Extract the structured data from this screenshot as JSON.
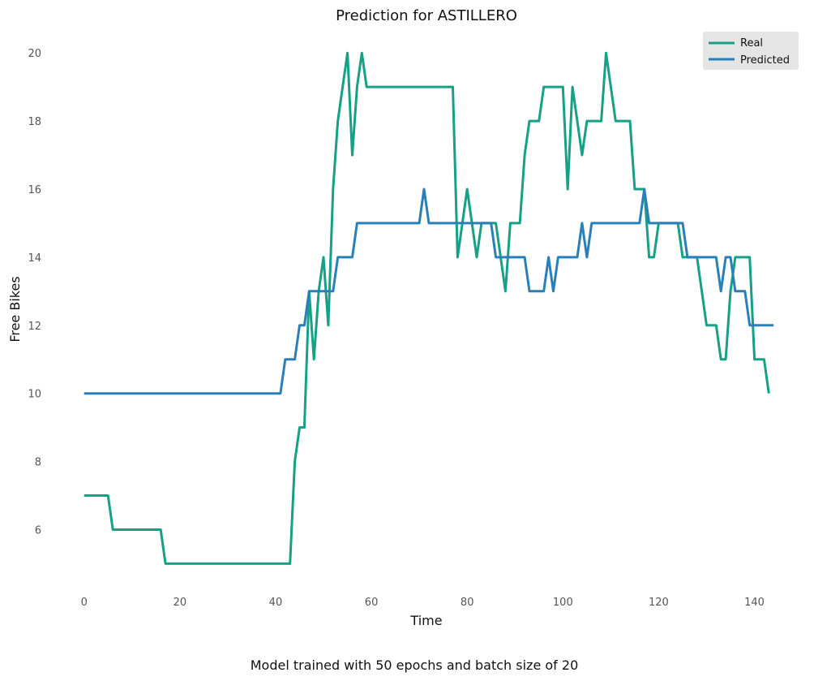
{
  "chart_data": {
    "type": "line",
    "title": "Prediction for ASTILLERO",
    "xlabel": "Time",
    "ylabel": "Free Bikes",
    "caption": "Model trained with 50 epochs and batch size of 20",
    "xlim": [
      -3,
      146
    ],
    "ylim": [
      4.2,
      20.6
    ],
    "xticks": [
      0,
      20,
      40,
      60,
      80,
      100,
      120,
      140
    ],
    "yticks": [
      6,
      8,
      10,
      12,
      14,
      16,
      18,
      20
    ],
    "grid": false,
    "legend_position": "top-right",
    "series": [
      {
        "name": "Real",
        "color": "#16a085",
        "values": [
          7,
          7,
          7,
          7,
          7,
          7,
          6,
          6,
          6,
          6,
          6,
          6,
          6,
          6,
          6,
          6,
          6,
          5,
          5,
          5,
          5,
          5,
          5,
          5,
          5,
          5,
          5,
          5,
          5,
          5,
          5,
          5,
          5,
          5,
          5,
          5,
          5,
          5,
          5,
          5,
          5,
          5,
          5,
          5,
          8,
          9,
          9,
          13,
          11,
          13,
          14,
          12,
          16,
          18,
          19,
          20,
          17,
          19,
          20,
          19,
          19,
          19,
          19,
          19,
          19,
          19,
          19,
          19,
          19,
          19,
          19,
          19,
          19,
          19,
          19,
          19,
          19,
          19,
          14,
          15,
          16,
          15,
          14,
          15,
          15,
          15,
          15,
          14,
          13,
          15,
          15,
          15,
          17,
          18,
          18,
          18,
          19,
          19,
          19,
          19,
          19,
          16,
          19,
          18,
          17,
          18,
          18,
          18,
          18,
          20,
          19,
          18,
          18,
          18,
          18,
          16,
          16,
          16,
          14,
          14,
          15,
          15,
          15,
          15,
          15,
          14,
          14,
          14,
          14,
          13,
          12,
          12,
          12,
          11,
          11,
          13,
          14,
          14,
          14,
          14,
          11,
          11,
          11,
          10
        ]
      },
      {
        "name": "Predicted",
        "color": "#2980b9",
        "values": [
          10,
          10,
          10,
          10,
          10,
          10,
          10,
          10,
          10,
          10,
          10,
          10,
          10,
          10,
          10,
          10,
          10,
          10,
          10,
          10,
          10,
          10,
          10,
          10,
          10,
          10,
          10,
          10,
          10,
          10,
          10,
          10,
          10,
          10,
          10,
          10,
          10,
          10,
          10,
          10,
          10,
          10,
          11,
          11,
          11,
          12,
          12,
          13,
          13,
          13,
          13,
          13,
          13,
          14,
          14,
          14,
          14,
          15,
          15,
          15,
          15,
          15,
          15,
          15,
          15,
          15,
          15,
          15,
          15,
          15,
          15,
          16,
          15,
          15,
          15,
          15,
          15,
          15,
          15,
          15,
          15,
          15,
          15,
          15,
          15,
          15,
          14,
          14,
          14,
          14,
          14,
          14,
          14,
          13,
          13,
          13,
          13,
          14,
          13,
          14,
          14,
          14,
          14,
          14,
          15,
          14,
          15,
          15,
          15,
          15,
          15,
          15,
          15,
          15,
          15,
          15,
          15,
          16,
          15,
          15,
          15,
          15,
          15,
          15,
          15,
          15,
          14,
          14,
          14,
          14,
          14,
          14,
          14,
          13,
          14,
          14,
          13,
          13,
          13,
          12,
          12,
          12,
          12,
          12,
          12
        ]
      }
    ]
  }
}
